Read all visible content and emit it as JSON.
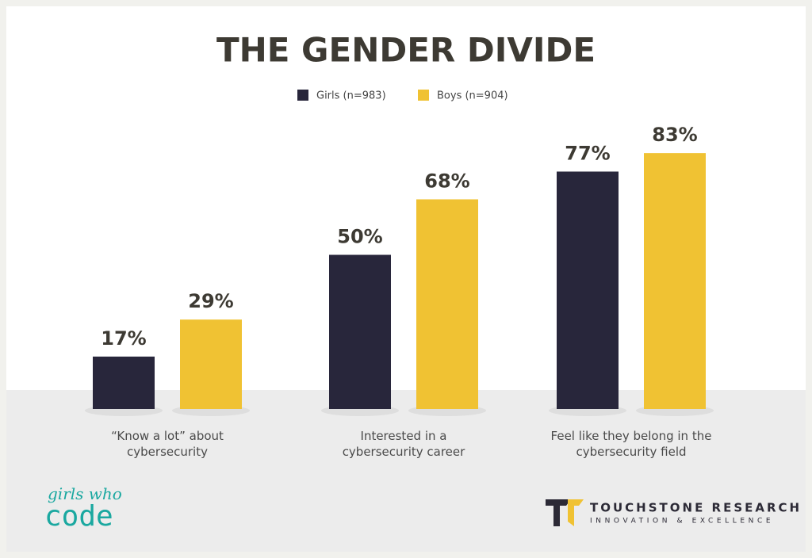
{
  "chart_data": {
    "type": "bar",
    "title": "THE GENDER DIVIDE",
    "categories": [
      "“Know a lot” about cybersecurity",
      "Interested in a cybersecurity career",
      "Feel like they belong in the cybersecurity field"
    ],
    "series": [
      {
        "name": "Girls (n=983)",
        "color": "#28263b",
        "values": [
          17,
          50,
          77
        ],
        "value_labels": [
          "17%",
          "50%",
          "77%"
        ]
      },
      {
        "name": "Boys (n=904)",
        "color": "#f0c233",
        "values": [
          29,
          68,
          83
        ],
        "value_labels": [
          "29%",
          "68%",
          "83%"
        ]
      }
    ],
    "legend": "top"
  },
  "logos": {
    "left_script": "girls who",
    "left_block": "code",
    "right_name": "TOUCHSTONE RESEARCH",
    "right_tagline": "INNOVATION & EXCELLENCE"
  }
}
